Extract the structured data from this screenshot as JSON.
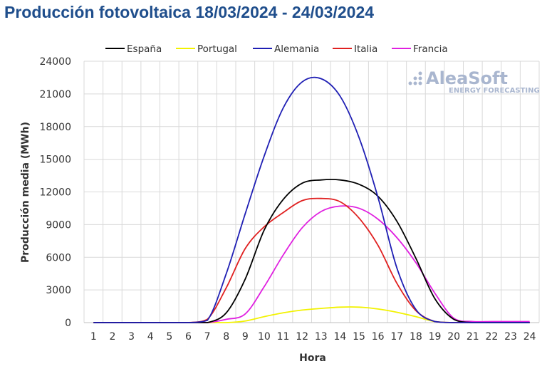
{
  "title": "Producción fotovoltaica 18/03/2024 - 24/03/2024",
  "logo": {
    "main": "AleaSoft",
    "sub": "ENERGY FORECASTING"
  },
  "chart_data": {
    "type": "line",
    "title": "Producción fotovoltaica 18/03/2024 - 24/03/2024",
    "xlabel": "Hora",
    "ylabel": "Producción media (MWh)",
    "x": [
      1,
      2,
      3,
      4,
      5,
      6,
      7,
      8,
      9,
      10,
      11,
      12,
      13,
      14,
      15,
      16,
      17,
      18,
      19,
      20,
      21,
      22,
      23,
      24
    ],
    "ylim": [
      0,
      24000
    ],
    "yticks": [
      0,
      3000,
      6000,
      9000,
      12000,
      15000,
      18000,
      21000,
      24000
    ],
    "grid": true,
    "legend_position": "top",
    "series": [
      {
        "name": "España",
        "color": "#000000",
        "values": [
          0,
          0,
          0,
          0,
          0,
          0,
          0,
          900,
          4000,
          8500,
          11300,
          12800,
          13100,
          13100,
          12700,
          11600,
          9300,
          5900,
          2200,
          300,
          0,
          0,
          0,
          0
        ]
      },
      {
        "name": "Portugal",
        "color": "#f2f200",
        "values": [
          0,
          0,
          0,
          0,
          0,
          0,
          0,
          0,
          150,
          550,
          900,
          1150,
          1300,
          1420,
          1420,
          1250,
          950,
          550,
          100,
          0,
          0,
          0,
          0,
          0
        ]
      },
      {
        "name": "Alemania",
        "color": "#1f1fb4",
        "values": [
          0,
          0,
          0,
          0,
          0,
          0,
          200,
          4500,
          10000,
          15300,
          19700,
          22100,
          22400,
          20800,
          17000,
          11500,
          5000,
          1200,
          100,
          0,
          0,
          0,
          0,
          0
        ]
      },
      {
        "name": "Italia",
        "color": "#e02020",
        "values": [
          0,
          0,
          0,
          0,
          0,
          0,
          300,
          3200,
          6800,
          8800,
          10100,
          11200,
          11400,
          11100,
          9600,
          7100,
          3600,
          1100,
          100,
          0,
          0,
          0,
          0,
          0
        ]
      },
      {
        "name": "Francia",
        "color": "#e020e0",
        "values": [
          0,
          0,
          0,
          0,
          0,
          0,
          0,
          300,
          800,
          3300,
          6200,
          8700,
          10200,
          10700,
          10500,
          9500,
          7800,
          5500,
          2700,
          400,
          100,
          100,
          100,
          100
        ]
      }
    ]
  }
}
